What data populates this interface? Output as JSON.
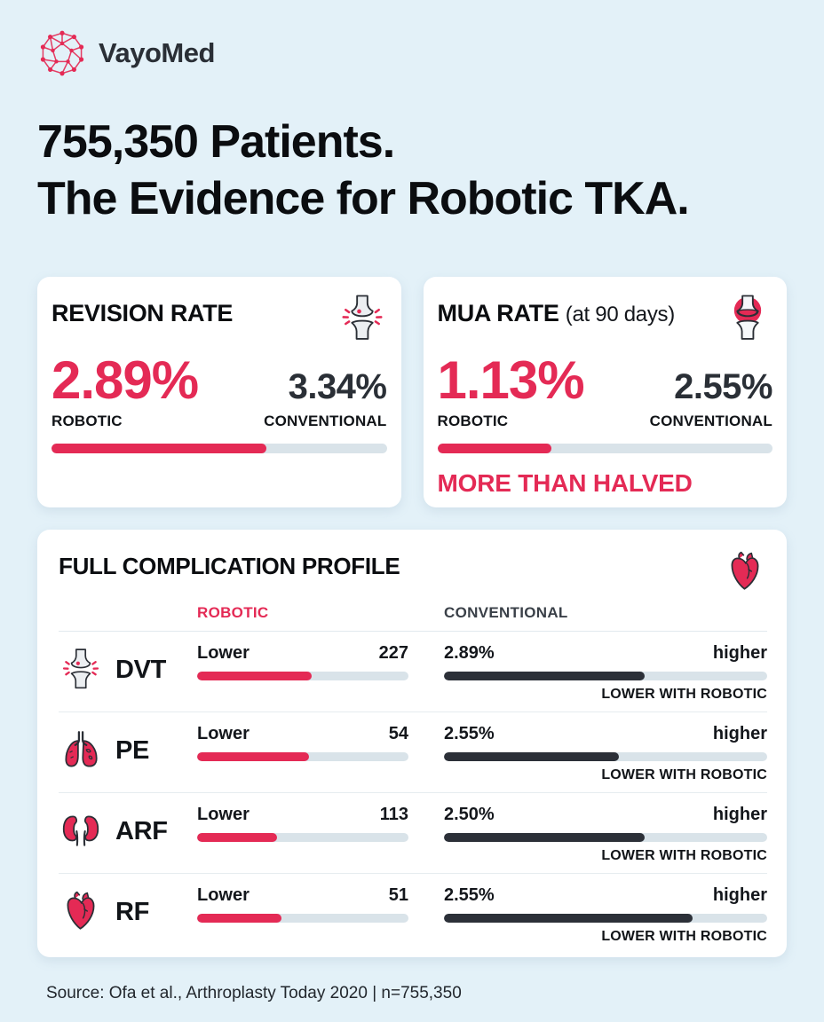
{
  "brand": {
    "name": "VayoMed",
    "logo_icon": "network-globe-icon"
  },
  "title": {
    "line1": "755,350 Patients.",
    "line2": "The Evidence for Robotic TKA."
  },
  "colors": {
    "accent": "#E42A55",
    "dark_bar": "#2C3038",
    "bar_track": "#D9E3E9",
    "background": "#E3F1F8",
    "card": "#FFFFFF",
    "text_dark": "#0B0D10"
  },
  "stat_cards": [
    {
      "title": "REVISION RATE",
      "subtitle": "",
      "icon": "knee-joint-icon",
      "robotic_value": "2.89%",
      "robotic_label": "ROBOTIC",
      "conventional_value": "3.34%",
      "conventional_label": "CONVENTIONAL",
      "bar_percent": 64,
      "callout": ""
    },
    {
      "title": "MUA RATE",
      "subtitle": "(at 90 days)",
      "icon": "knee-joint-highlight-icon",
      "robotic_value": "1.13%",
      "robotic_label": "ROBOTIC",
      "conventional_value": "2.55%",
      "conventional_label": "CONVENTIONAL",
      "bar_percent": 34,
      "callout": "MORE THAN HALVED"
    }
  ],
  "complications": {
    "title": "FULL COMPLICATION PROFILE",
    "icon": "heart-icon",
    "col_robotic": "ROBOTIC",
    "col_conventional": "CONVENTIONAL",
    "rows": [
      {
        "abbr": "DVT",
        "icon": "knee-joint-icon",
        "robotic_text": "Lower",
        "robotic_value": "227",
        "robotic_bar": 54,
        "conventional_value": "2.89%",
        "conventional_text": "higher",
        "conventional_bar": 62,
        "note": "LOWER WITH ROBOTIC"
      },
      {
        "abbr": "PE",
        "icon": "lungs-icon",
        "robotic_text": "Lower",
        "robotic_value": "54",
        "robotic_bar": 53,
        "conventional_value": "2.55%",
        "conventional_text": "higher",
        "conventional_bar": 54,
        "note": "LOWER WITH ROBOTIC"
      },
      {
        "abbr": "ARF",
        "icon": "kidneys-icon",
        "robotic_text": "Lower",
        "robotic_value": "113",
        "robotic_bar": 38,
        "conventional_value": "2.50%",
        "conventional_text": "higher",
        "conventional_bar": 62,
        "note": "LOWER WITH ROBOTIC"
      },
      {
        "abbr": "RF",
        "icon": "heart-icon",
        "robotic_text": "Lower",
        "robotic_value": "51",
        "robotic_bar": 40,
        "conventional_value": "2.55%",
        "conventional_text": "higher",
        "conventional_bar": 77,
        "note": "LOWER WITH ROBOTIC"
      }
    ]
  },
  "source": "Source: Ofa et al., Arthroplasty Today 2020 | n=755,350",
  "chart_data": {
    "type": "bar",
    "title": "755,350 Patients. The Evidence for Robotic TKA.",
    "n": 755350,
    "legend": [
      "ROBOTIC",
      "CONVENTIONAL"
    ],
    "rate_comparisons": [
      {
        "metric": "Revision rate",
        "unit": "%",
        "robotic": 2.89,
        "conventional": 3.34
      },
      {
        "metric": "MUA rate (at 90 days)",
        "unit": "%",
        "robotic": 1.13,
        "conventional": 2.55,
        "annotation": "MORE THAN HALVED"
      }
    ],
    "complication_profile": [
      {
        "label": "DVT",
        "robotic": "Lower",
        "robotic_value": 227,
        "conventional_higher_pct": 2.89,
        "note": "LOWER WITH ROBOTIC"
      },
      {
        "label": "PE",
        "robotic": "Lower",
        "robotic_value": 54,
        "conventional_higher_pct": 2.55,
        "note": "LOWER WITH ROBOTIC"
      },
      {
        "label": "ARF",
        "robotic": "Lower",
        "robotic_value": 113,
        "conventional_higher_pct": 2.5,
        "note": "LOWER WITH ROBOTIC"
      },
      {
        "label": "RF",
        "robotic": "Lower",
        "robotic_value": 51,
        "conventional_higher_pct": 2.55,
        "note": "LOWER WITH ROBOTIC"
      }
    ],
    "source": "Ofa et al., Arthroplasty Today 2020"
  }
}
